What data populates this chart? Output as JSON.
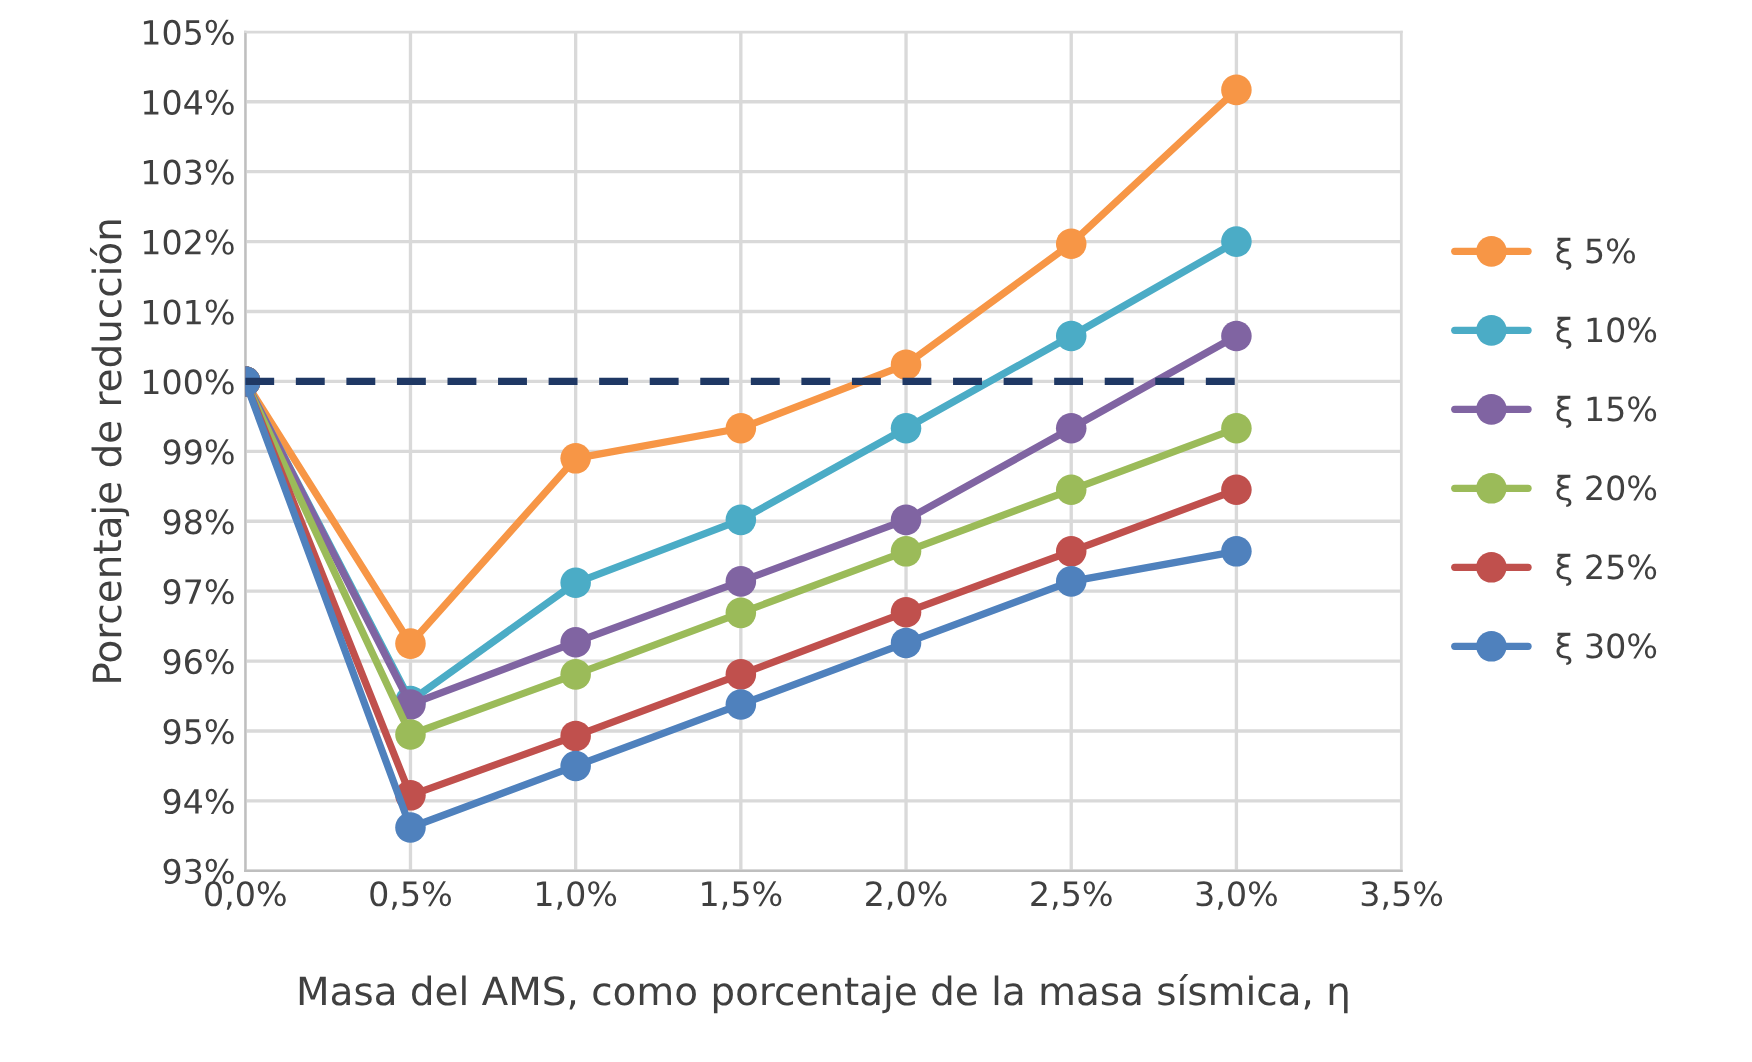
{
  "chart_data": {
    "type": "line",
    "xlabel": "Masa del AMS, como porcentaje de la masa sísmica, η",
    "ylabel": "Porcentaje de reducción",
    "x": [
      0,
      0.5,
      1.0,
      1.5,
      2.0,
      2.5,
      3.0
    ],
    "series": [
      {
        "name": "ξ 5%",
        "color": "#f79646",
        "values": [
          100,
          96.25,
          98.9,
          99.33,
          100.24,
          101.97,
          104.17
        ]
      },
      {
        "name": "ξ 10%",
        "color": "#4bacc6",
        "values": [
          100,
          95.43,
          97.12,
          98.02,
          99.33,
          100.65,
          102.0
        ]
      },
      {
        "name": "ξ 15%",
        "color": "#8064a2",
        "values": [
          100,
          95.38,
          96.27,
          97.14,
          98.02,
          99.33,
          100.65
        ]
      },
      {
        "name": "ξ 20%",
        "color": "#9bbb59",
        "values": [
          100,
          94.95,
          95.81,
          96.69,
          97.57,
          98.45,
          99.33
        ]
      },
      {
        "name": "ξ 25%",
        "color": "#c0504d",
        "values": [
          100,
          94.08,
          94.93,
          95.81,
          96.7,
          97.57,
          98.45
        ]
      },
      {
        "name": "ξ 30%",
        "color": "#4f81bd",
        "values": [
          100,
          93.62,
          94.5,
          95.38,
          96.26,
          97.14,
          97.57
        ]
      },
      {
        "color": "#1f3864",
        "x": [
          0,
          3.0
        ],
        "values": [
          100,
          100
        ],
        "marker": "none",
        "line_style": "dashed"
      }
    ],
    "xlim": [
      0,
      3.5
    ],
    "xticks": [
      {
        "value": 0,
        "label": "0,0%"
      },
      {
        "value": 0.5,
        "label": "0,5%"
      },
      {
        "value": 1.0,
        "label": "1,0%"
      },
      {
        "value": 1.5,
        "label": "1,5%"
      },
      {
        "value": 2.0,
        "label": "2,0%"
      },
      {
        "value": 2.5,
        "label": "2,5%"
      },
      {
        "value": 3.0,
        "label": "3,0%"
      },
      {
        "value": 3.5,
        "label": "3,5%"
      }
    ],
    "ylim": [
      93,
      105
    ],
    "yticks": [
      {
        "value": 93,
        "label": "93%"
      },
      {
        "value": 94,
        "label": "94%"
      },
      {
        "value": 95,
        "label": "95%"
      },
      {
        "value": 96,
        "label": "96%"
      },
      {
        "value": 97,
        "label": "97%"
      },
      {
        "value": 98,
        "label": "98%"
      },
      {
        "value": 99,
        "label": "99%"
      },
      {
        "value": 100,
        "label": "100%"
      },
      {
        "value": 101,
        "label": "101%"
      },
      {
        "value": 102,
        "label": "102%"
      },
      {
        "value": 103,
        "label": "103%"
      },
      {
        "value": 104,
        "label": "104%"
      },
      {
        "value": 105,
        "label": "105%"
      }
    ],
    "grid": true,
    "legend": "right",
    "marker": "circle",
    "line_style": "solid"
  }
}
